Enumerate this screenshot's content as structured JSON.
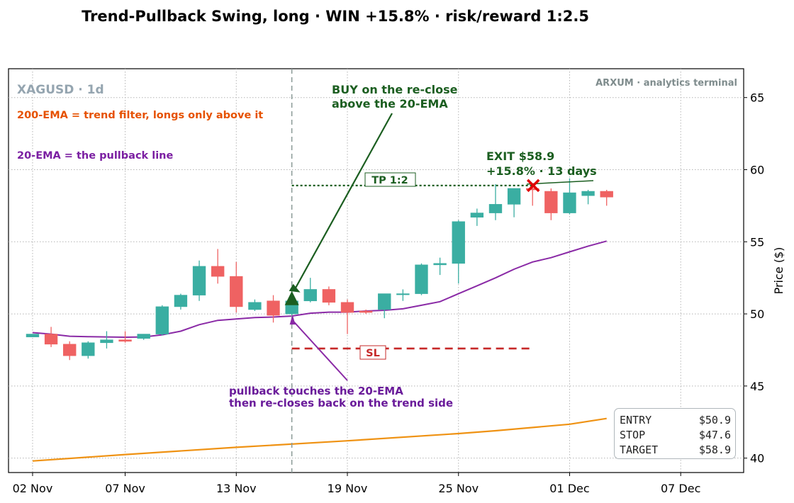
{
  "colors": {
    "up": "#3aaea2",
    "down": "#ef6262",
    "ema20": "#8a2aa6",
    "ema200": "#ef9213",
    "buy": "#1b5e20",
    "stop": "#c62828",
    "grid": "#b4b4b4",
    "watermark": "#95a5b0"
  },
  "chart_data": {
    "type": "candlestick",
    "title": "Trend-Pullback Swing, long · WIN +15.8% · risk/reward 1:2.5",
    "symbol_label": "XAGUSD · 1d",
    "watermark": "ARXUM · analytics terminal",
    "ylabel": "Price ($)",
    "ylim": [
      39,
      67
    ],
    "yticks": [
      40,
      45,
      50,
      55,
      60,
      65
    ],
    "x_start": "2025-11-02",
    "xlim_days": [
      -1.3,
      38.4
    ],
    "xticks": [
      {
        "date": "2025-11-02",
        "label": "02 Nov"
      },
      {
        "date": "2025-11-07",
        "label": "07 Nov"
      },
      {
        "date": "2025-11-13",
        "label": "13 Nov"
      },
      {
        "date": "2025-11-19",
        "label": "19 Nov"
      },
      {
        "date": "2025-11-25",
        "label": "25 Nov"
      },
      {
        "date": "2025-12-01",
        "label": "01 Dec"
      },
      {
        "date": "2025-12-07",
        "label": "07 Dec"
      }
    ],
    "candles": [
      {
        "date": "2025-11-02",
        "o": 48.4,
        "h": 48.6,
        "l": 48.4,
        "c": 48.6
      },
      {
        "date": "2025-11-03",
        "o": 48.6,
        "h": 49.1,
        "l": 47.7,
        "c": 47.9
      },
      {
        "date": "2025-11-04",
        "o": 47.9,
        "h": 48.1,
        "l": 46.8,
        "c": 47.1
      },
      {
        "date": "2025-11-05",
        "o": 47.1,
        "h": 48.1,
        "l": 46.9,
        "c": 48.0
      },
      {
        "date": "2025-11-06",
        "o": 48.0,
        "h": 48.8,
        "l": 47.6,
        "c": 48.2
      },
      {
        "date": "2025-11-07",
        "o": 48.2,
        "h": 48.8,
        "l": 48.0,
        "c": 48.1
      },
      {
        "date": "2025-11-08",
        "o": 48.3,
        "h": 48.6,
        "l": 48.2,
        "c": 48.6
      },
      {
        "date": "2025-11-09",
        "o": 48.6,
        "h": 50.6,
        "l": 48.5,
        "c": 50.5
      },
      {
        "date": "2025-11-10",
        "o": 50.5,
        "h": 51.4,
        "l": 50.3,
        "c": 51.3
      },
      {
        "date": "2025-11-11",
        "o": 51.3,
        "h": 53.7,
        "l": 50.9,
        "c": 53.3
      },
      {
        "date": "2025-11-12",
        "o": 53.3,
        "h": 54.5,
        "l": 52.1,
        "c": 52.6
      },
      {
        "date": "2025-11-13",
        "o": 52.6,
        "h": 53.6,
        "l": 50.1,
        "c": 50.5
      },
      {
        "date": "2025-11-14",
        "o": 50.3,
        "h": 51.0,
        "l": 50.2,
        "c": 50.8
      },
      {
        "date": "2025-11-15",
        "o": 50.9,
        "h": 51.3,
        "l": 49.4,
        "c": 49.9
      },
      {
        "date": "2025-11-16",
        "o": 50.0,
        "h": 51.0,
        "l": 49.9,
        "c": 50.9
      },
      {
        "date": "2025-11-17",
        "o": 50.9,
        "h": 52.5,
        "l": 50.8,
        "c": 51.7
      },
      {
        "date": "2025-11-18",
        "o": 51.7,
        "h": 51.9,
        "l": 50.6,
        "c": 50.8
      },
      {
        "date": "2025-11-19",
        "o": 50.8,
        "h": 51.0,
        "l": 48.6,
        "c": 50.1
      },
      {
        "date": "2025-11-20",
        "o": 50.2,
        "h": 50.3,
        "l": 50.0,
        "c": 50.1
      },
      {
        "date": "2025-11-21",
        "o": 50.3,
        "h": 51.4,
        "l": 49.7,
        "c": 51.4
      },
      {
        "date": "2025-11-22",
        "o": 51.4,
        "h": 51.7,
        "l": 50.9,
        "c": 51.4
      },
      {
        "date": "2025-11-23",
        "o": 51.4,
        "h": 53.5,
        "l": 51.3,
        "c": 53.4
      },
      {
        "date": "2025-11-24",
        "o": 53.4,
        "h": 53.9,
        "l": 52.7,
        "c": 53.5
      },
      {
        "date": "2025-11-25",
        "o": 53.5,
        "h": 56.5,
        "l": 52.1,
        "c": 56.4
      },
      {
        "date": "2025-11-26",
        "o": 56.7,
        "h": 57.3,
        "l": 56.1,
        "c": 57.0
      },
      {
        "date": "2025-11-27",
        "o": 57.0,
        "h": 59.0,
        "l": 56.5,
        "c": 57.6
      },
      {
        "date": "2025-11-28",
        "o": 57.6,
        "h": 58.7,
        "l": 56.7,
        "c": 58.7
      },
      {
        "date": "2025-11-29",
        "o": 58.7,
        "h": 59.0,
        "l": 57.5,
        "c": 58.6
      },
      {
        "date": "2025-11-30",
        "o": 58.5,
        "h": 58.7,
        "l": 56.5,
        "c": 57.0
      },
      {
        "date": "2025-12-01",
        "o": 57.0,
        "h": 59.4,
        "l": 56.9,
        "c": 58.4
      },
      {
        "date": "2025-12-02",
        "o": 58.2,
        "h": 58.6,
        "l": 57.6,
        "c": 58.5
      },
      {
        "date": "2025-12-03",
        "o": 58.5,
        "h": 58.6,
        "l": 57.5,
        "c": 58.1
      }
    ],
    "ema20": {
      "label": "20-EMA = the pullback line",
      "dates": [
        "2025-11-02",
        "2025-11-03",
        "2025-11-04",
        "2025-11-05",
        "2025-11-06",
        "2025-11-07",
        "2025-11-08",
        "2025-11-09",
        "2025-11-10",
        "2025-11-11",
        "2025-11-12",
        "2025-11-13",
        "2025-11-14",
        "2025-11-15",
        "2025-11-16",
        "2025-11-17",
        "2025-11-18",
        "2025-11-19",
        "2025-11-20",
        "2025-11-21",
        "2025-11-22",
        "2025-11-23",
        "2025-11-24",
        "2025-11-25",
        "2025-11-26",
        "2025-11-27",
        "2025-11-28",
        "2025-11-29",
        "2025-11-30",
        "2025-12-01",
        "2025-12-02",
        "2025-12-03"
      ],
      "values": [
        48.7,
        48.6,
        48.45,
        48.42,
        48.4,
        48.38,
        48.4,
        48.55,
        48.8,
        49.25,
        49.55,
        49.65,
        49.75,
        49.78,
        49.85,
        50.05,
        50.12,
        50.12,
        50.2,
        50.25,
        50.35,
        50.6,
        50.85,
        51.4,
        51.95,
        52.5,
        53.1,
        53.6,
        53.9,
        54.3,
        54.7,
        55.05
      ]
    },
    "ema200": {
      "label": "200-EMA = trend filter, longs only above it",
      "dates": [
        "2025-11-02",
        "2025-11-07",
        "2025-11-13",
        "2025-11-19",
        "2025-11-25",
        "2025-11-27",
        "2025-12-01",
        "2025-12-03"
      ],
      "values": [
        39.8,
        40.25,
        40.75,
        41.2,
        41.7,
        41.9,
        42.35,
        42.75
      ]
    },
    "entry_date": "2025-11-16",
    "exit_date": "2025-11-29",
    "entry": 50.9,
    "stop": 47.6,
    "target": 58.9,
    "exit_price": 58.9,
    "tp_label": "TP 1:2",
    "sl_label": "SL",
    "buy_annotation": [
      "BUY on the re-close",
      "above the 20-EMA"
    ],
    "exit_annotation": [
      "EXIT $58.9",
      "+15.8%  ·  13 days"
    ],
    "pullback_annotation": [
      "pullback touches the 20-EMA",
      "then re-closes back on the trend side"
    ],
    "info_box": [
      {
        "label": "ENTRY",
        "value": "$50.9"
      },
      {
        "label": "STOP",
        "value": "$47.6"
      },
      {
        "label": "TARGET",
        "value": "$58.9"
      }
    ]
  }
}
